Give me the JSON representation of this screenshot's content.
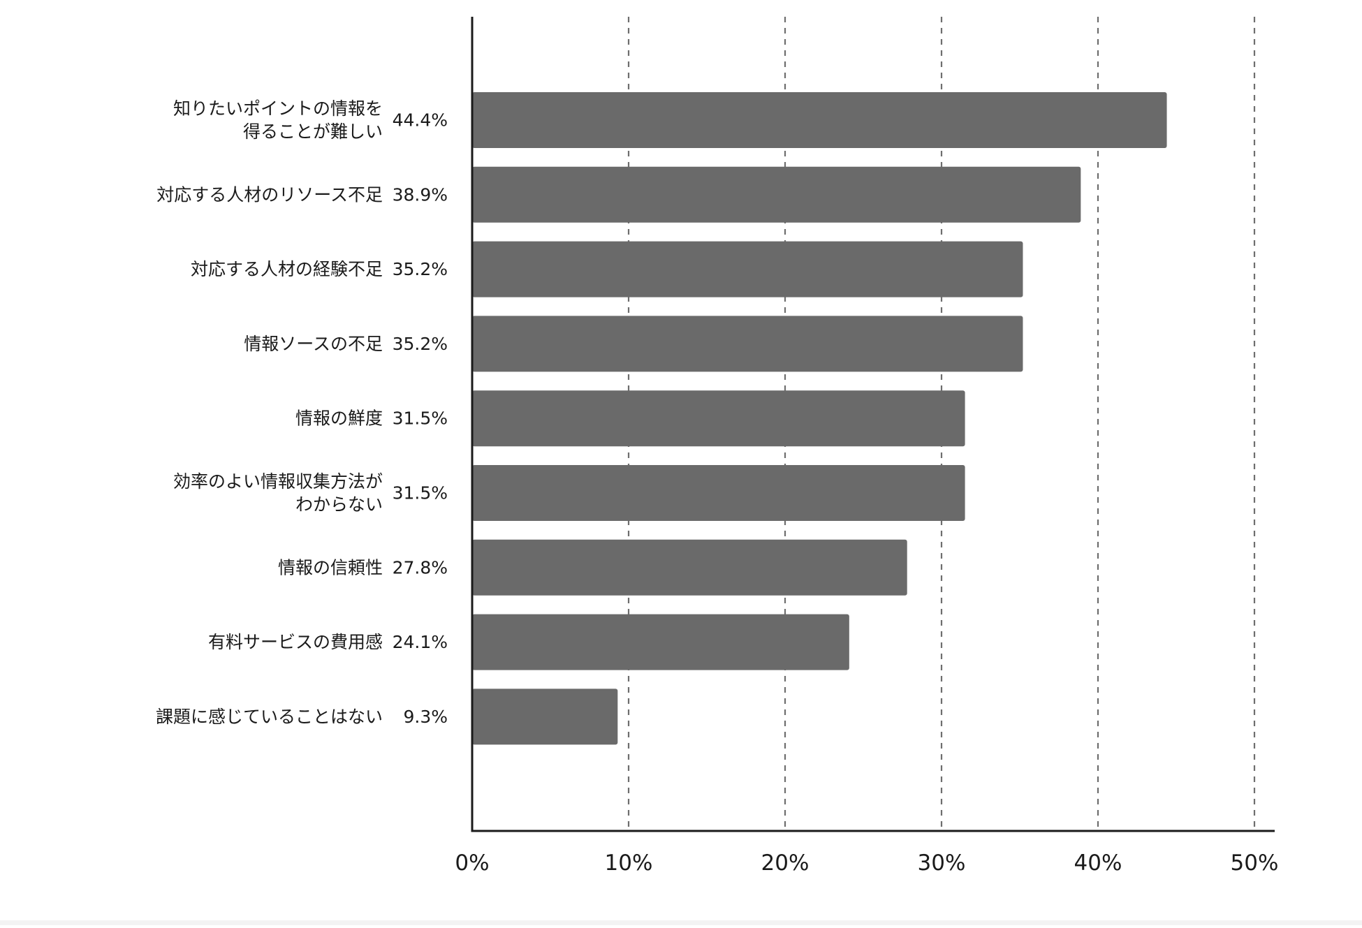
{
  "chart_data": {
    "type": "bar",
    "orientation": "horizontal",
    "categories": [
      "知りたいポイントの情報を\n得ることが難しい",
      "対応する人材のリソース不足",
      "対応する人材の経験不足",
      "情報ソースの不足",
      "情報の鮮度",
      "効率のよい情報収集方法が\nわからない",
      "情報の信頼性",
      "有料サービスの費用感",
      "課題に感じていることはない"
    ],
    "values": [
      44.4,
      38.9,
      35.2,
      35.2,
      31.5,
      31.5,
      27.8,
      24.1,
      9.3
    ],
    "value_labels": [
      "44.4%",
      "38.9%",
      "35.2%",
      "35.2%",
      "31.5%",
      "31.5%",
      "27.8%",
      "24.1%",
      "9.3%"
    ],
    "xlim": [
      0,
      50
    ],
    "x_ticks": [
      0,
      10,
      20,
      30,
      40,
      50
    ],
    "x_tick_labels": [
      "0%",
      "10%",
      "20%",
      "30%",
      "40%",
      "50%"
    ],
    "grid": "vertical dashed",
    "bar_color": "#6a6a6a",
    "axis_color": "#1a1a1a",
    "grid_color": "#6e6e6e"
  }
}
